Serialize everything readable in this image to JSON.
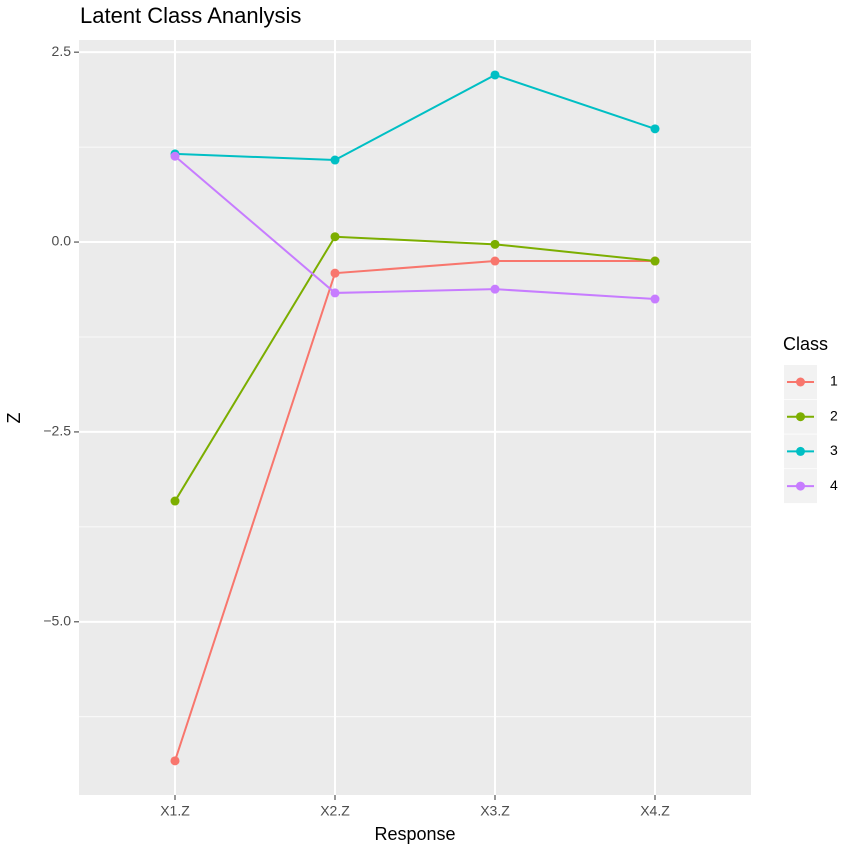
{
  "chart_data": {
    "type": "line",
    "title": "Latent Class Ananlysis",
    "x_label": "Response",
    "y_label": "Z",
    "categories": [
      "X1.Z",
      "X2.Z",
      "X3.Z",
      "X4.Z"
    ],
    "series": [
      {
        "name": "1",
        "color": "#F8766D",
        "values": [
          -6.83,
          -0.41,
          -0.25,
          -0.25
        ]
      },
      {
        "name": "2",
        "color": "#7CAE00",
        "values": [
          -3.41,
          0.07,
          -0.03,
          -0.25
        ]
      },
      {
        "name": "3",
        "color": "#00BFC4",
        "values": [
          1.16,
          1.08,
          2.2,
          1.49
        ]
      },
      {
        "name": "4",
        "color": "#C77CFF",
        "values": [
          1.13,
          -0.67,
          -0.62,
          -0.75
        ]
      }
    ],
    "ylim": [
      -7.28,
      2.66
    ],
    "yticks": [
      {
        "value": 2.5,
        "label": "2.5"
      },
      {
        "value": 0,
        "label": "0.0"
      },
      {
        "value": -2.5,
        "label": "−2.5"
      },
      {
        "value": -5,
        "label": "−5.0"
      }
    ],
    "minor_yticks": [
      1.25,
      -1.25,
      -3.75,
      -6.25
    ],
    "legend_title": "Class",
    "legend_position": "right",
    "grid": true
  }
}
